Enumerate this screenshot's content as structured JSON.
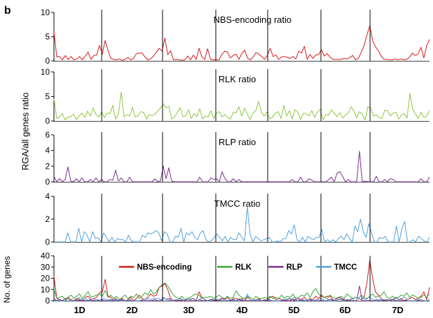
{
  "panel_letter": "b",
  "y_axis_label": "RGA/all genes ratio",
  "colors": {
    "nbs": "#d7191c",
    "rlk": "#8cc63f",
    "rlp": "#7b2d8e",
    "tmcc": "#4ea1dc",
    "rlk_legend": "#3aa335",
    "axis": "#000000"
  },
  "chart_data": [
    {
      "type": "line",
      "title": "NBS-encoding ratio",
      "color_key": "nbs",
      "y_ticks": [
        "10",
        "5",
        "0"
      ],
      "ylim": [
        0,
        10
      ],
      "series": [
        {
          "values": [
            6,
            0.8,
            0.9,
            0.2,
            1.1,
            0.3,
            0.9,
            0.2,
            0.4,
            0.9,
            0.2,
            1.0,
            1.8,
            0.3,
            1.1,
            1.2,
            3.2,
            1.4,
            4.2,
            2.1,
            0.5,
            0.3,
            0.2,
            0.4,
            0.1,
            0.3,
            0.7,
            0.2,
            0.5,
            1.5,
            1.6,
            1.6,
            0.8,
            0.2,
            0.4,
            1.0,
            1.8,
            2.6,
            2.0,
            4.7,
            1.3,
            2.1,
            0.2,
            0.3,
            0.2,
            0.1,
            0.2,
            1.0,
            0.2,
            1.2,
            0.3,
            2.6,
            0.8,
            0.3,
            2.5,
            0.3,
            0.2,
            0.2,
            0.2,
            1.3,
            2.0,
            1.8,
            0.6,
            1.1,
            1.4,
            0.3,
            1.5,
            2.2,
            0.6,
            0.2,
            0.8,
            1.7,
            1.4,
            0.9,
            0.3,
            1.1,
            2.6,
            0.9,
            1.2,
            0.3,
            0.8,
            0.9,
            0.7,
            0.5,
            0.9,
            0.4,
            2.0,
            1.6,
            3.0,
            0.3,
            1.3,
            0.5,
            1.2,
            1.3,
            2.3,
            1.0,
            1.5,
            0.8,
            0.3,
            0.3,
            0.3,
            0.3,
            0.5,
            0.4,
            0.7,
            1.1,
            0.2,
            0.5,
            1.8,
            3.2,
            5.3,
            7.3,
            4.2,
            2.9,
            2.1,
            1.0,
            0.3,
            0.3,
            0.2,
            0.2,
            0.4,
            0.2,
            0.4,
            0.2,
            0.3,
            0.8,
            1.6,
            1.1,
            1.4,
            2.8,
            0.6,
            3.2,
            4.4
          ]
        }
      ]
    },
    {
      "type": "line",
      "title": "RLK ratio",
      "color_key": "rlk",
      "y_ticks": [
        "10",
        "5",
        "0"
      ],
      "ylim": [
        0,
        10
      ],
      "series": [
        {
          "values": [
            4.5,
            0.5,
            0.8,
            1.5,
            0.2,
            0.8,
            0.9,
            1.4,
            0.3,
            1.0,
            1.6,
            0.7,
            2.0,
            1.0,
            2.6,
            1.3,
            0.8,
            1.9,
            0.7,
            1.6,
            1.5,
            3.2,
            0.4,
            1.4,
            5.9,
            0.8,
            1.3,
            1.0,
            2.8,
            0.8,
            1.1,
            1.9,
            1.7,
            0.4,
            1.3,
            1.1,
            1.4,
            2.0,
            2.6,
            3.5,
            2.7,
            3.0,
            0.4,
            0.8,
            1.7,
            2.7,
            0.9,
            1.0,
            2.3,
            0.5,
            1.5,
            0.9,
            2.5,
            0.4,
            1.0,
            0.8,
            2.1,
            0.5,
            1.6,
            1.9,
            0.8,
            1.3,
            0.7,
            0.4,
            1.8,
            1.7,
            2.9,
            1.0,
            2.6,
            1.4,
            0.3,
            1.6,
            2.1,
            4.0,
            1.8,
            1.0,
            1.8,
            0.4,
            0.8,
            1.6,
            1.9,
            0.5,
            3.2,
            1.0,
            2.1,
            0.4,
            2.3,
            1.8,
            0.3,
            1.6,
            1.5,
            1.0,
            2.1,
            0.7,
            1.8,
            2.4,
            0.3,
            1.3,
            1.2,
            2.3,
            1.5,
            0.9,
            1.7,
            0.6,
            1.2,
            1.6,
            2.9,
            2.1,
            0.6,
            1.9,
            1.4,
            0.2,
            2.9,
            2.6,
            1.0,
            1.3,
            0.7,
            0.5,
            2.2,
            2.1,
            1.0,
            1.6,
            1.8,
            0.4,
            1.2,
            1.5,
            0.6,
            5.6,
            2.4,
            1.4,
            0.5,
            1.8,
            0.7,
            1.0,
            2.1
          ]
        }
      ]
    },
    {
      "type": "line",
      "title": "RLP ratio",
      "color_key": "rlp",
      "y_ticks": [
        "6",
        "4",
        "2",
        "0"
      ],
      "ylim": [
        0,
        6
      ],
      "series": [
        {
          "values": [
            0.7,
            0,
            0.4,
            0,
            0.3,
            1.9,
            0.1,
            0,
            0.4,
            0,
            0.5,
            0,
            0,
            0.3,
            0,
            0.5,
            0,
            0.3,
            0,
            0,
            0.3,
            0.2,
            1.5,
            0.1,
            0.5,
            0,
            0,
            0.6,
            0,
            0,
            0,
            0,
            0,
            0,
            0,
            0,
            0.4,
            0,
            0.1,
            2.0,
            0.4,
            1.8,
            0.1,
            0,
            0,
            0,
            0,
            0,
            0,
            0,
            0,
            0,
            0.6,
            0,
            0,
            0,
            0.5,
            0.3,
            0.4,
            0,
            1.3,
            0.4,
            0,
            0,
            0.4,
            0,
            0.3,
            0,
            0,
            0,
            0,
            0,
            0,
            0,
            0,
            0,
            0,
            0,
            0,
            0,
            0,
            0,
            0,
            0,
            0,
            0.3,
            0,
            0,
            0.6,
            0,
            0,
            0.4,
            0.2,
            0,
            0,
            0,
            0,
            0,
            0.3,
            0.6,
            0,
            1.1,
            1.3,
            0.7,
            0,
            0.3,
            0,
            0,
            0,
            3.9,
            0,
            0.1,
            0,
            0,
            0,
            0.7,
            0,
            0,
            0.3,
            0,
            0.4,
            0.3,
            0,
            0,
            0,
            0,
            0,
            0,
            0,
            0,
            0,
            0.4,
            0,
            0,
            0.6
          ]
        }
      ]
    },
    {
      "type": "line",
      "title": "TMCC ratio",
      "color_key": "tmcc",
      "y_ticks": [
        "4",
        "2",
        "0"
      ],
      "ylim": [
        0,
        4
      ],
      "series": [
        {
          "values": [
            0,
            0,
            0,
            0,
            0,
            0.8,
            0,
            0,
            0,
            1.2,
            0,
            0.9,
            0.6,
            0,
            0.9,
            0.3,
            0.4,
            0,
            0.8,
            0.4,
            0,
            0.4,
            0,
            0.3,
            0.2,
            0.2,
            0,
            0.6,
            0.1,
            0,
            0,
            0,
            0.6,
            0.4,
            0.8,
            0.7,
            0.8,
            1.0,
            0.8,
            0.1,
            0.9,
            0.7,
            0,
            0,
            0.5,
            0.4,
            1.2,
            0,
            0.8,
            0.6,
            0.9,
            0.4,
            0.2,
            0.8,
            1.0,
            0.2,
            0,
            0.1,
            0.4,
            0.7,
            0.4,
            0.1,
            0.5,
            0,
            0.4,
            0.2,
            0.2,
            0.8,
            0.4,
            0.1,
            3.1,
            0.7,
            0,
            0.5,
            0.3,
            0.1,
            0.2,
            0.3,
            0.4,
            0,
            0,
            0.1,
            0,
            0.3,
            0.3,
            1.0,
            0.7,
            1.5,
            0.2,
            0,
            0.4,
            0,
            0.5,
            0.3,
            0.2,
            0.4,
            0.4,
            1.1,
            0,
            0.2,
            0,
            0.2,
            0,
            0.3,
            0.5,
            0.2,
            0.7,
            0.3,
            0,
            1.4,
            0.9,
            2.0,
            0.9,
            0.4,
            1.6,
            0.8,
            0,
            0,
            0.4,
            0.3,
            0.5,
            0,
            0,
            0,
            1.4,
            0,
            1.2,
            1.8,
            0,
            0,
            0.2,
            0,
            0.5,
            0.3,
            0.1,
            0,
            0.4
          ]
        }
      ]
    },
    {
      "type": "line",
      "title": "",
      "ylabel": "No. of genes",
      "y_ticks": [
        "40",
        "30",
        "20",
        "10",
        "0"
      ],
      "ylim": [
        0,
        40
      ],
      "x_ticks": [
        "1D",
        "2D",
        "3D",
        "4D",
        "5D",
        "6D",
        "7D"
      ],
      "legend": [
        "NBS-encoding",
        "RLK",
        "RLP",
        "TMCC"
      ],
      "series": [
        {
          "name": "NBS-encoding",
          "color_key": "nbs",
          "values": [
            22,
            2,
            1,
            0,
            2,
            3,
            1,
            0,
            2,
            1,
            0,
            3,
            4,
            1,
            2,
            3,
            7,
            8,
            19,
            4,
            3,
            0,
            1,
            0,
            2,
            0,
            1,
            3,
            0,
            2,
            5,
            2,
            1,
            3,
            6,
            4,
            5,
            12,
            13,
            15,
            10,
            2,
            0,
            1,
            0,
            1,
            0,
            2,
            1,
            2,
            0,
            8,
            3,
            1,
            0,
            1,
            1,
            0,
            1,
            2,
            1,
            3,
            0,
            2,
            2,
            1,
            2,
            0,
            3,
            1,
            0,
            1,
            2,
            0,
            1,
            0,
            3,
            4,
            1,
            2,
            1,
            0,
            1,
            2,
            1,
            1,
            2,
            1,
            3,
            0,
            2,
            1,
            4,
            2,
            5,
            3,
            4,
            4,
            1,
            0,
            1,
            2,
            1,
            0,
            1,
            2,
            3,
            2,
            1,
            3,
            16,
            36,
            20,
            8,
            5,
            2,
            0,
            1,
            0,
            1,
            3,
            1,
            2,
            0,
            1,
            2,
            3,
            1,
            2,
            4,
            8,
            1,
            12
          ]
        },
        {
          "name": "RLK",
          "color_key": "rlk_legend",
          "values": [
            10,
            2,
            3,
            4,
            1,
            3,
            5,
            2,
            4,
            6,
            2,
            5,
            8,
            3,
            4,
            5,
            6,
            4,
            9,
            3,
            5,
            2,
            4,
            1,
            3,
            5,
            2,
            4,
            3,
            6,
            2,
            4,
            7,
            5,
            10,
            6,
            8,
            12,
            14,
            16,
            13,
            9,
            5,
            3,
            2,
            4,
            1,
            2,
            3,
            5,
            6,
            5,
            2,
            3,
            3,
            4,
            2,
            3,
            5,
            3,
            2,
            4,
            2,
            3,
            9,
            5,
            3,
            2,
            4,
            3,
            1,
            4,
            2,
            2,
            3,
            2,
            4,
            2,
            3,
            2,
            5,
            2,
            4,
            3,
            6,
            2,
            3,
            5,
            4,
            7,
            3,
            8,
            11,
            6,
            4,
            3,
            2,
            5,
            3,
            2,
            3,
            4,
            2,
            6,
            4,
            2,
            3,
            2,
            5,
            3,
            2,
            4,
            6,
            3,
            4,
            5,
            8,
            3,
            2,
            4,
            2,
            3,
            5,
            4,
            7,
            3,
            5,
            4,
            2,
            3,
            5,
            3,
            6
          ]
        },
        {
          "name": "RLP",
          "color_key": "rlp",
          "values": [
            2,
            0,
            1,
            0,
            0,
            2,
            0,
            0,
            1,
            0,
            1,
            0,
            0,
            1,
            0,
            1,
            0,
            1,
            0,
            0,
            1,
            0,
            2,
            0,
            1,
            0,
            0,
            1,
            0,
            0,
            0,
            0,
            0,
            0,
            0,
            0,
            1,
            0,
            0,
            3,
            1,
            2,
            0,
            0,
            0,
            0,
            0,
            0,
            0,
            0,
            0,
            0,
            1,
            0,
            0,
            0,
            1,
            0,
            1,
            0,
            2,
            1,
            0,
            0,
            1,
            0,
            1,
            0,
            0,
            0,
            0,
            0,
            0,
            0,
            0,
            0,
            0,
            0,
            0,
            0,
            0,
            0,
            0,
            0,
            0,
            1,
            0,
            0,
            1,
            0,
            0,
            1,
            0,
            0,
            0,
            0,
            0,
            0,
            1,
            1,
            0,
            2,
            3,
            1,
            0,
            1,
            0,
            0,
            0,
            13,
            0,
            0,
            0,
            0,
            0,
            1,
            0,
            0,
            1,
            0,
            1,
            1,
            0,
            0,
            0,
            0,
            0,
            0,
            0,
            0,
            0,
            1,
            0,
            0,
            1
          ]
        },
        {
          "name": "TMCC",
          "color_key": "tmcc",
          "values": [
            0,
            0,
            0,
            0,
            0,
            2,
            0,
            0,
            0,
            3,
            0,
            2,
            1,
            0,
            2,
            1,
            1,
            0,
            2,
            1,
            0,
            1,
            0,
            1,
            0,
            0,
            0,
            1,
            0,
            0,
            0,
            0,
            1,
            1,
            2,
            1,
            2,
            2,
            2,
            0,
            2,
            1,
            0,
            0,
            1,
            1,
            2,
            0,
            2,
            1,
            2,
            1,
            0,
            2,
            2,
            0,
            0,
            0,
            1,
            1,
            1,
            0,
            1,
            0,
            1,
            0,
            0,
            2,
            1,
            0,
            6,
            1,
            0,
            1,
            1,
            0,
            0,
            1,
            1,
            0,
            0,
            0,
            0,
            1,
            1,
            2,
            1,
            3,
            0,
            0,
            1,
            0,
            1,
            1,
            0,
            1,
            1,
            2,
            0,
            0,
            0,
            0,
            0,
            1,
            1,
            0,
            1,
            1,
            0,
            3,
            2,
            4,
            2,
            1,
            3,
            2,
            0,
            0,
            1,
            1,
            1,
            0,
            0,
            0,
            3,
            0,
            2,
            3,
            0,
            0,
            0,
            0,
            1,
            1,
            0,
            0,
            1
          ]
        }
      ],
      "chromosome_boundaries": [
        "1D|2D",
        "2D|3D",
        "3D|4D",
        "4D|5D",
        "5D|6D",
        "6D|7D"
      ]
    }
  ]
}
